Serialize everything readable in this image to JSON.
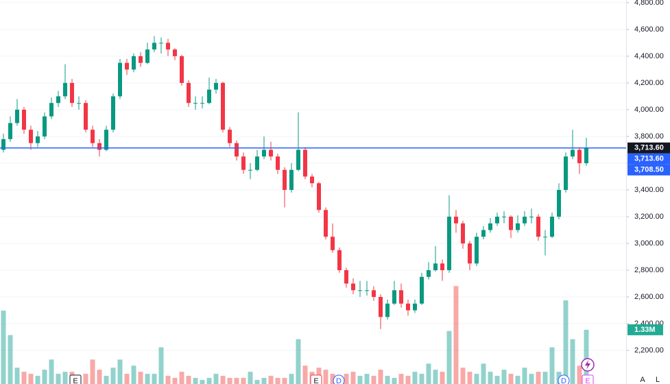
{
  "chart_data": {
    "type": "candlestick",
    "ylim": [
      1949,
      4820
    ],
    "yticks": [
      {
        "value": 2200,
        "label": "2,200.00"
      },
      {
        "value": 2400,
        "label": "2,400.00"
      },
      {
        "value": 2600,
        "label": "2,600.00"
      },
      {
        "value": 2800,
        "label": "2,800.00"
      },
      {
        "value": 3000,
        "label": "3,000.00"
      },
      {
        "value": 3200,
        "label": "3,200.00"
      },
      {
        "value": 3400,
        "label": "3,400.00"
      },
      {
        "value": 3600,
        "label": "3,600.00"
      },
      {
        "value": 3800,
        "label": "3,800.00"
      },
      {
        "value": 4000,
        "label": "4,000.00"
      },
      {
        "value": 4200,
        "label": "4,200.00"
      },
      {
        "value": 4400,
        "label": "4,400.00"
      },
      {
        "value": 4600,
        "label": "4,600.00"
      },
      {
        "value": 4800,
        "label": "4,800.00"
      }
    ],
    "grid": true,
    "up_color": "#089981",
    "down_color": "#f23645",
    "candles": [
      [
        3700,
        3820,
        3680,
        3780
      ],
      [
        3780,
        3950,
        3760,
        3900
      ],
      [
        3900,
        4080,
        3880,
        4000
      ],
      [
        4000,
        4020,
        3820,
        3850
      ],
      [
        3850,
        3880,
        3700,
        3750
      ],
      [
        3750,
        3840,
        3720,
        3800
      ],
      [
        3800,
        3980,
        3780,
        3950
      ],
      [
        3950,
        4090,
        3930,
        4050
      ],
      [
        4050,
        4140,
        4020,
        4100
      ],
      [
        4100,
        4340,
        4080,
        4200
      ],
      [
        4200,
        4230,
        4020,
        4050
      ],
      [
        4050,
        4100,
        4000,
        4050
      ],
      [
        4050,
        4070,
        3830,
        3850
      ],
      [
        3850,
        3880,
        3720,
        3750
      ],
      [
        3750,
        3780,
        3650,
        3700
      ],
      [
        3700,
        3880,
        3690,
        3850
      ],
      [
        3850,
        4120,
        3830,
        4100
      ],
      [
        4100,
        4380,
        4080,
        4350
      ],
      [
        4350,
        4380,
        4260,
        4300
      ],
      [
        4300,
        4420,
        4280,
        4400
      ],
      [
        4400,
        4430,
        4320,
        4350
      ],
      [
        4350,
        4500,
        4340,
        4450
      ],
      [
        4450,
        4550,
        4430,
        4500
      ],
      [
        4500,
        4540,
        4420,
        4500
      ],
      [
        4500,
        4530,
        4400,
        4450
      ],
      [
        4450,
        4460,
        4370,
        4400
      ],
      [
        4400,
        4410,
        4180,
        4200
      ],
      [
        4200,
        4220,
        4020,
        4050
      ],
      [
        4050,
        4100,
        4000,
        4050
      ],
      [
        4050,
        4100,
        4010,
        4050
      ],
      [
        4050,
        4240,
        4040,
        4150
      ],
      [
        4150,
        4230,
        4120,
        4200
      ],
      [
        4200,
        4210,
        3830,
        3850
      ],
      [
        3850,
        3870,
        3720,
        3750
      ],
      [
        3750,
        3770,
        3620,
        3650
      ],
      [
        3650,
        3680,
        3520,
        3550
      ],
      [
        3550,
        3600,
        3480,
        3550
      ],
      [
        3550,
        3700,
        3540,
        3650
      ],
      [
        3650,
        3800,
        3630,
        3700
      ],
      [
        3700,
        3760,
        3620,
        3650
      ],
      [
        3650,
        3670,
        3520,
        3550
      ],
      [
        3550,
        3570,
        3270,
        3400
      ],
      [
        3400,
        3600,
        3380,
        3550
      ],
      [
        3550,
        3980,
        3540,
        3700
      ],
      [
        3700,
        3720,
        3480,
        3500
      ],
      [
        3500,
        3520,
        3420,
        3450
      ],
      [
        3450,
        3460,
        3230,
        3250
      ],
      [
        3250,
        3270,
        3030,
        3050
      ],
      [
        3050,
        3150,
        2930,
        2950
      ],
      [
        2950,
        2970,
        2780,
        2800
      ],
      [
        2800,
        2820,
        2670,
        2700
      ],
      [
        2700,
        2740,
        2620,
        2650
      ],
      [
        2650,
        2720,
        2600,
        2650
      ],
      [
        2650,
        2720,
        2610,
        2650
      ],
      [
        2650,
        2680,
        2570,
        2600
      ],
      [
        2600,
        2620,
        2360,
        2450
      ],
      [
        2450,
        2580,
        2430,
        2550
      ],
      [
        2550,
        2720,
        2540,
        2650
      ],
      [
        2650,
        2700,
        2520,
        2550
      ],
      [
        2550,
        2580,
        2460,
        2500
      ],
      [
        2500,
        2580,
        2480,
        2550
      ],
      [
        2550,
        2780,
        2540,
        2750
      ],
      [
        2750,
        2860,
        2730,
        2800
      ],
      [
        2800,
        2980,
        2790,
        2850
      ],
      [
        2850,
        2880,
        2720,
        2800
      ],
      [
        2800,
        3360,
        2780,
        3200
      ],
      [
        3200,
        3250,
        3080,
        3150
      ],
      [
        3150,
        3170,
        2960,
        3000
      ],
      [
        3000,
        3020,
        2800,
        2850
      ],
      [
        2850,
        3080,
        2830,
        3050
      ],
      [
        3050,
        3130,
        3030,
        3100
      ],
      [
        3100,
        3190,
        3080,
        3150
      ],
      [
        3150,
        3230,
        3130,
        3200
      ],
      [
        3200,
        3240,
        3150,
        3200
      ],
      [
        3200,
        3210,
        3040,
        3100
      ],
      [
        3100,
        3210,
        3080,
        3150
      ],
      [
        3150,
        3240,
        3130,
        3200
      ],
      [
        3200,
        3260,
        3150,
        3200
      ],
      [
        3200,
        3220,
        3020,
        3050
      ],
      [
        3050,
        3100,
        2910,
        3050
      ],
      [
        3050,
        3230,
        3040,
        3200
      ],
      [
        3200,
        3450,
        3180,
        3400
      ],
      [
        3400,
        3680,
        3380,
        3650
      ],
      [
        3650,
        3850,
        3630,
        3700
      ],
      [
        3700,
        3720,
        3520,
        3600
      ],
      [
        3600,
        3790,
        3580,
        3713.6
      ]
    ],
    "vlim": [
      0,
      2690000
    ],
    "volumes": [
      1800000,
      1200000,
      400000,
      300000,
      250000,
      200000,
      350000,
      600000,
      250000,
      300000,
      300000,
      200000,
      250000,
      600000,
      350000,
      200000,
      400000,
      600000,
      250000,
      450000,
      300000,
      250000,
      250000,
      900000,
      200000,
      150000,
      300000,
      200000,
      150000,
      100000,
      150000,
      250000,
      200000,
      150000,
      150000,
      150000,
      300000,
      100000,
      150000,
      200000,
      150000,
      150000,
      250000,
      1100000,
      450000,
      300000,
      400000,
      350000,
      250000,
      200000,
      250000,
      300000,
      200000,
      250000,
      200000,
      350000,
      200000,
      150000,
      250000,
      200000,
      300000,
      250000,
      500000,
      350000,
      300000,
      1300000,
      2400000,
      400000,
      300000,
      250000,
      500000,
      300000,
      200000,
      350000,
      250000,
      200000,
      400000,
      250000,
      300000,
      300000,
      900000,
      300000,
      2050000,
      1100000,
      450000,
      1330000
    ],
    "volume_label": "1.33M",
    "price_labels": [
      {
        "value": 3713.6,
        "label": "3,713.60",
        "color": "#131722"
      },
      {
        "value": 3713.6,
        "label": "3,713.60",
        "color": "#2962ff"
      },
      {
        "value": 3708.5,
        "label": "3,708.50",
        "color": "#2962ff"
      }
    ],
    "markers": [
      "E",
      "E",
      "D",
      "D",
      "E"
    ],
    "scale_buttons": [
      "A",
      "L"
    ]
  }
}
